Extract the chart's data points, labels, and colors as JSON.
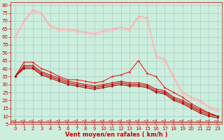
{
  "background_color": "#cceedd",
  "grid_color": "#aacccc",
  "xlabel": "Vent moyen/en rafales ( km/h )",
  "xlabel_color": "#cc0000",
  "xlabel_fontsize": 6,
  "tick_color": "#cc0000",
  "tick_fontsize": 5,
  "xlim": [
    -0.5,
    23.5
  ],
  "ylim": [
    5,
    82
  ],
  "yticks": [
    5,
    10,
    15,
    20,
    25,
    30,
    35,
    40,
    45,
    50,
    55,
    60,
    65,
    70,
    75,
    80
  ],
  "xticks": [
    0,
    1,
    2,
    3,
    4,
    5,
    6,
    7,
    8,
    9,
    10,
    11,
    12,
    13,
    14,
    15,
    16,
    17,
    18,
    19,
    20,
    21,
    22,
    23
  ],
  "series": [
    {
      "x": [
        0,
        1,
        2,
        3,
        4,
        5,
        6,
        7,
        8,
        9,
        10,
        11,
        12,
        13,
        14,
        15,
        16,
        17,
        18,
        19,
        20,
        21,
        22,
        23
      ],
      "y": [
        60,
        70,
        77,
        75,
        67,
        65,
        65,
        64,
        63,
        62,
        64,
        65,
        66,
        65,
        73,
        72,
        48,
        46,
        35,
        25,
        22,
        20,
        16,
        14
      ],
      "color": "#ffaaaa",
      "linewidth": 0.8,
      "marker": "o",
      "markersize": 1.5
    },
    {
      "x": [
        0,
        1,
        2,
        3,
        4,
        5,
        6,
        7,
        8,
        9,
        10,
        11,
        12,
        13,
        14,
        15,
        16,
        17,
        18,
        19,
        20,
        21,
        22,
        23
      ],
      "y": [
        59,
        69,
        76,
        74,
        66,
        64,
        64,
        63,
        62,
        61,
        63,
        64,
        65,
        64,
        72,
        71,
        47,
        45,
        34,
        24,
        21,
        19,
        15,
        13
      ],
      "color": "#ffbbbb",
      "linewidth": 0.8,
      "marker": "o",
      "markersize": 1.5
    },
    {
      "x": [
        0,
        1,
        2,
        3,
        4,
        5,
        6,
        7,
        8,
        9,
        10,
        11,
        12,
        13,
        14,
        15,
        16,
        17,
        18,
        19,
        20,
        21,
        22,
        23
      ],
      "y": [
        35,
        44,
        44,
        40,
        38,
        35,
        33,
        33,
        32,
        31,
        32,
        35,
        36,
        38,
        45,
        37,
        35,
        28,
        25,
        22,
        18,
        15,
        12,
        10
      ],
      "color": "#ee2222",
      "linewidth": 0.8,
      "marker": "o",
      "markersize": 1.5
    },
    {
      "x": [
        0,
        1,
        2,
        3,
        4,
        5,
        6,
        7,
        8,
        9,
        10,
        11,
        12,
        13,
        14,
        15,
        16,
        17,
        18,
        19,
        20,
        21,
        22,
        23
      ],
      "y": [
        35,
        42,
        42,
        38,
        36,
        34,
        32,
        31,
        30,
        29,
        30,
        31,
        32,
        31,
        31,
        30,
        27,
        26,
        22,
        20,
        17,
        14,
        12,
        10
      ],
      "color": "#cc1111",
      "linewidth": 0.8,
      "marker": "o",
      "markersize": 1.5
    },
    {
      "x": [
        0,
        1,
        2,
        3,
        4,
        5,
        6,
        7,
        8,
        9,
        10,
        11,
        12,
        13,
        14,
        15,
        16,
        17,
        18,
        19,
        20,
        21,
        22,
        23
      ],
      "y": [
        35,
        41,
        41,
        37,
        35,
        33,
        31,
        30,
        29,
        28,
        29,
        30,
        31,
        30,
        30,
        29,
        26,
        25,
        21,
        19,
        16,
        13,
        11,
        10
      ],
      "color": "#bb0000",
      "linewidth": 0.8,
      "marker": "o",
      "markersize": 1.5
    },
    {
      "x": [
        0,
        1,
        2,
        3,
        4,
        5,
        6,
        7,
        8,
        9,
        10,
        11,
        12,
        13,
        14,
        15,
        16,
        17,
        18,
        19,
        20,
        21,
        22,
        23
      ],
      "y": [
        35,
        40,
        40,
        36,
        34,
        32,
        30,
        29,
        28,
        27,
        28,
        29,
        30,
        29,
        29,
        28,
        25,
        24,
        20,
        18,
        15,
        12,
        10,
        9
      ],
      "color": "#aa0000",
      "linewidth": 0.8,
      "marker": "o",
      "markersize": 1.5
    }
  ],
  "arrow_color": "#cc2222",
  "bottom_line_y": 7
}
